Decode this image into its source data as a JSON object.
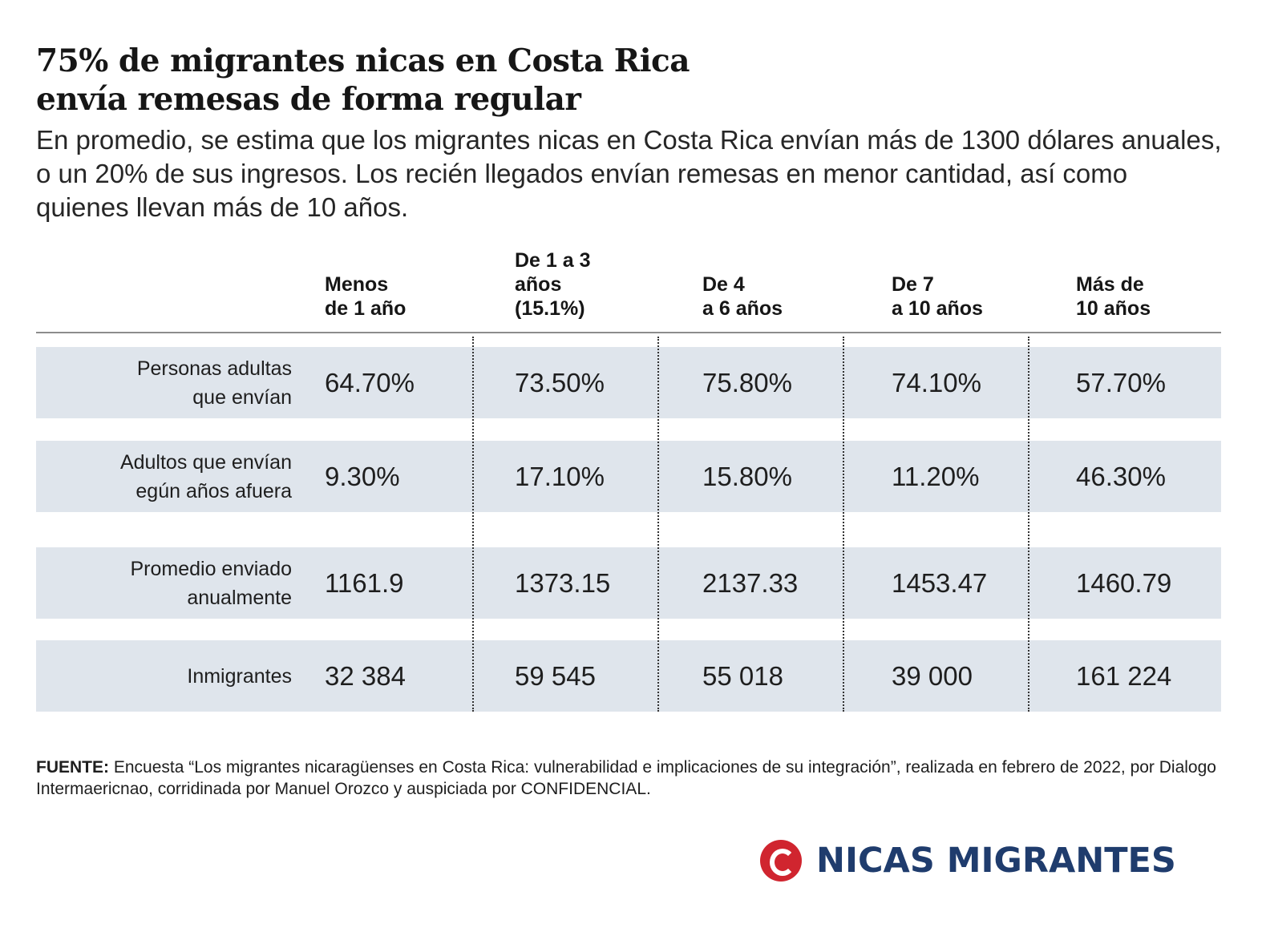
{
  "title_lines": [
    "75% de migrantes nicas en Costa Rica",
    "envía remesas de forma regular"
  ],
  "subtitle": "En promedio, se estima que los migrantes nicas en Costa Rica envían más de 1300 dólares anuales, o un 20% de sus ingresos. Los recién llegados envían remesas en menor cantidad, así como quienes llevan más de 10 años.",
  "chart_data": {
    "type": "table",
    "columns": [
      "Menos\nde 1 año",
      "De 1 a 3\naños\n(15.1%)",
      "De 4\na 6 años",
      "De 7\na 10 años",
      "Más de\n10 años"
    ],
    "rows": [
      {
        "label": "Personas adultas\nque envían",
        "values": [
          "64.70%",
          "73.50%",
          "75.80%",
          "74.10%",
          "57.70%"
        ]
      },
      {
        "label": "Adultos que envían\negún años afuera",
        "values": [
          "9.30%",
          "17.10%",
          "15.80%",
          "11.20%",
          "46.30%"
        ]
      },
      {
        "label": "Promedio enviado\nanualmente",
        "values": [
          "1161.9",
          "1373.15",
          "2137.33",
          "1453.47",
          "1460.79"
        ]
      },
      {
        "label": "Inmigrantes",
        "values": [
          "32 384",
          "59 545",
          "55 018",
          "39 000",
          "161 224"
        ]
      }
    ]
  },
  "source": {
    "label": "FUENTE:",
    "text": " Encuesta “Los migrantes nicaragüenses en Costa Rica: vulnerabilidad e implicaciones de su integración”, realizada en febrero de 2022, por Dialogo Intermaericnao, corridinada por Manuel Orozco y auspiciada por CONFIDENCIAL."
  },
  "brand": {
    "name": "NICAS MIGRANTES",
    "logo_icon": "confidencial-c-logo-icon",
    "logo_color": "#d0252f",
    "text_color": "#1f3c6d"
  },
  "colors": {
    "row_band": "#dfe5ec"
  }
}
